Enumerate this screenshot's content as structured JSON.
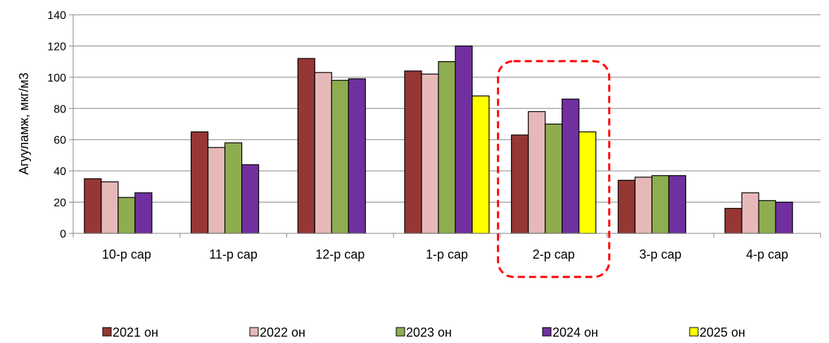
{
  "chart_data": {
    "type": "bar",
    "ylabel": "Агууламж, мкг/м3",
    "ylim": [
      0,
      140
    ],
    "yticks": [
      0,
      20,
      40,
      60,
      80,
      100,
      120,
      140
    ],
    "grid": "horizontal",
    "legend_position": "bottom",
    "categories": [
      "10-р сар",
      "11-р сар",
      "12-р сар",
      "1-р сар",
      "2-р сар",
      "3-р сар",
      "4-р сар"
    ],
    "series": [
      {
        "name": "2021 он",
        "color": "#953735",
        "values": [
          35,
          65,
          112,
          104,
          63,
          34,
          16
        ]
      },
      {
        "name": "2022 он",
        "color": "#E6B9B8",
        "values": [
          33,
          55,
          103,
          102,
          78,
          36,
          26
        ]
      },
      {
        "name": "2023 он",
        "color": "#8EAD4F",
        "values": [
          23,
          58,
          98,
          110,
          70,
          37,
          21
        ]
      },
      {
        "name": "2024 он",
        "color": "#7030A0",
        "values": [
          26,
          44,
          99,
          120,
          86,
          37,
          20
        ]
      },
      {
        "name": "2025 он",
        "color": "#FFFF00",
        "values": [
          null,
          null,
          null,
          88,
          65,
          null,
          null
        ]
      }
    ],
    "highlight": {
      "category": "2-р сар",
      "style": "red dashed rounded box",
      "color": "#FF0000"
    }
  }
}
